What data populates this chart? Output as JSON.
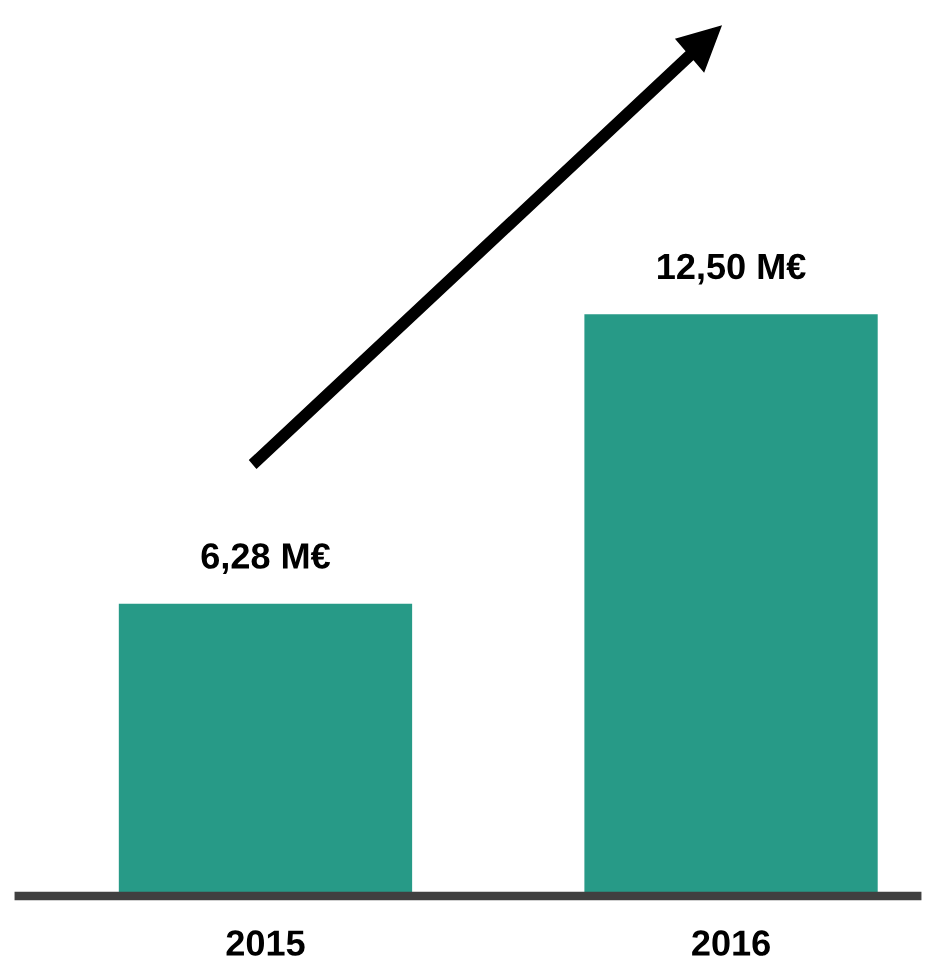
{
  "chart_data": {
    "type": "bar",
    "categories": [
      "2015",
      "2016"
    ],
    "values": [
      6.28,
      12.5
    ],
    "value_labels": [
      "6,28 M€",
      "12,50 M€"
    ],
    "color": "#279a87",
    "grid": false,
    "legend": false
  }
}
